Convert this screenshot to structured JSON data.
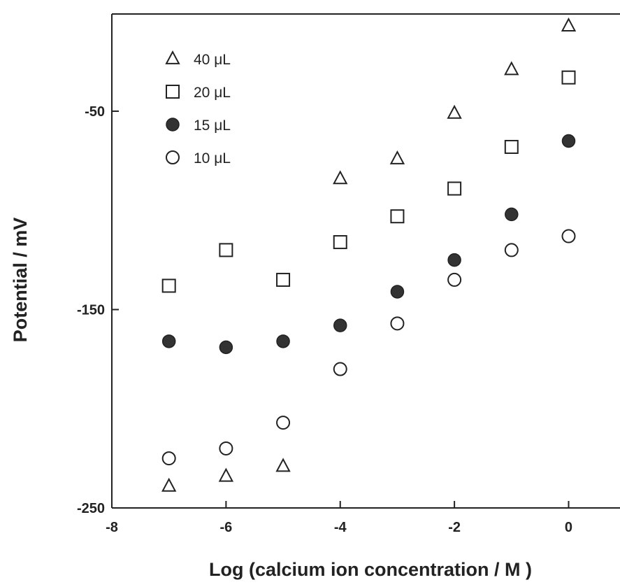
{
  "chart_data": {
    "type": "scatter",
    "xlabel": "Log (calcium ion concentration / M )",
    "ylabel": "Potential / mV",
    "xlim": [
      -8,
      0.9
    ],
    "ylim": [
      -250,
      -1
    ],
    "x_ticks": [
      -8,
      -6,
      -4,
      -2,
      0
    ],
    "y_ticks": [
      -50,
      -150,
      -250
    ],
    "grid": false,
    "legend_position": "top-left",
    "series": [
      {
        "name": "40 μL",
        "marker": "triangle-open",
        "points": [
          {
            "x": -7,
            "y": -239
          },
          {
            "x": -6,
            "y": -234
          },
          {
            "x": -5,
            "y": -229
          },
          {
            "x": -4,
            "y": -84
          },
          {
            "x": -3,
            "y": -74
          },
          {
            "x": -2,
            "y": -51
          },
          {
            "x": -1,
            "y": -29
          },
          {
            "x": 0,
            "y": -7
          }
        ]
      },
      {
        "name": "20 μL",
        "marker": "square-open",
        "points": [
          {
            "x": -7,
            "y": -138
          },
          {
            "x": -6,
            "y": -120
          },
          {
            "x": -5,
            "y": -135
          },
          {
            "x": -4,
            "y": -116
          },
          {
            "x": -3,
            "y": -103
          },
          {
            "x": -2,
            "y": -89
          },
          {
            "x": -1,
            "y": -68
          },
          {
            "x": 0,
            "y": -33
          }
        ]
      },
      {
        "name": "15 μL",
        "marker": "circle-filled",
        "points": [
          {
            "x": -7,
            "y": -166
          },
          {
            "x": -6,
            "y": -169
          },
          {
            "x": -5,
            "y": -166
          },
          {
            "x": -4,
            "y": -158
          },
          {
            "x": -3,
            "y": -141
          },
          {
            "x": -2,
            "y": -125
          },
          {
            "x": -1,
            "y": -102
          },
          {
            "x": 0,
            "y": -65
          }
        ]
      },
      {
        "name": "10 μL",
        "marker": "circle-open",
        "points": [
          {
            "x": -7,
            "y": -225
          },
          {
            "x": -6,
            "y": -220
          },
          {
            "x": -5,
            "y": -207
          },
          {
            "x": -4,
            "y": -180
          },
          {
            "x": -3,
            "y": -157
          },
          {
            "x": -2,
            "y": -135
          },
          {
            "x": -1,
            "y": -120
          },
          {
            "x": 0,
            "y": -113
          }
        ]
      }
    ]
  }
}
